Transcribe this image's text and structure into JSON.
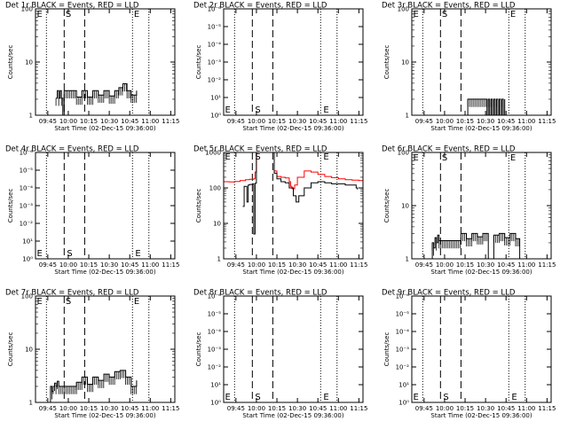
{
  "figure": {
    "background": "#ffffff",
    "event_color": "#000000",
    "lld_color": "#ff0000"
  },
  "chart_data": [
    {
      "type": "line",
      "title": "Det 1r BLACK = Events, RED = LLD",
      "xlabel": "Start Time (02-Dec-15 09:36:00)",
      "ylabel": "Counts/sec",
      "xlim": [
        "09:36",
        "11:18"
      ],
      "ylog": true,
      "ylim": [
        1,
        100
      ],
      "xticks": [
        "09:45",
        "10:00",
        "10:15",
        "10:30",
        "10:45",
        "11:00",
        "11:15"
      ],
      "yticks": [
        "1",
        "10",
        "100"
      ],
      "vlines": {
        "dotted": [
          "09:44",
          "10:47",
          "10:59"
        ],
        "dashed": [
          "09:57",
          "10:12"
        ]
      },
      "markers": [
        {
          "text": "E",
          "x": "09:37",
          "y": 82
        },
        {
          "text": "S",
          "x": "09:58",
          "y": 82
        },
        {
          "text": "E",
          "x": "10:48",
          "y": 82
        }
      ],
      "series": [
        {
          "color": "#000000",
          "gap_above": 1.4,
          "x": [
            "09:51",
            "09:52",
            "09:53",
            "09:54",
            "09:55",
            "09:56",
            "09:57",
            "10:06",
            "10:10",
            "10:14",
            "10:18",
            "10:22",
            "10:26",
            "10:30",
            "10:34",
            "10:37",
            "10:40",
            "10:43",
            "10:46",
            "10:50"
          ],
          "y": [
            2.1,
            2.9,
            2.1,
            2.9,
            2.1,
            1.0,
            2.9,
            2.2,
            2.9,
            2.2,
            2.9,
            2.4,
            2.9,
            2.3,
            2.9,
            3.3,
            3.9,
            2.9,
            2.4,
            2.9
          ]
        }
      ]
    },
    {
      "type": "line",
      "title": "Det 2r BLACK = Events, RED = LLD",
      "xlabel": "Start Time (02-Dec-15 09:36:00)",
      "ylabel": "Counts/sec",
      "xlim": [
        "09:36",
        "11:18"
      ],
      "ylog": true,
      "ylim": [
        1,
        1000000
      ],
      "xticks": [
        "09:45",
        "10:00",
        "10:15",
        "10:30",
        "10:45",
        "11:00",
        "11:15"
      ],
      "yticks": [
        "10⁰",
        "10¹",
        "10⁻²",
        "10⁻³",
        "10⁻⁴",
        "10⁻⁵",
        "10⁻⁶"
      ],
      "vlines": {
        "dotted": [
          "09:44",
          "10:47",
          "10:59"
        ],
        "dashed": [
          "09:57",
          "10:12"
        ]
      },
      "markers": [
        {
          "text": "E",
          "x": "09:37",
          "y": 2.2
        },
        {
          "text": "S",
          "x": "09:59",
          "y": 2.2
        },
        {
          "text": "E",
          "x": "10:49",
          "y": 2.2
        }
      ],
      "series": []
    },
    {
      "type": "line",
      "title": "Det 3r BLACK = Events, RED = LLD",
      "xlabel": "Start Time (02-Dec-15 09:36:00)",
      "ylabel": "Counts/sec",
      "xlim": [
        "09:36",
        "11:18"
      ],
      "ylog": true,
      "ylim": [
        1,
        100
      ],
      "xticks": [
        "09:45",
        "10:00",
        "10:15",
        "10:30",
        "10:45",
        "11:00",
        "11:15"
      ],
      "yticks": [
        "1",
        "10",
        "100"
      ],
      "vlines": {
        "dotted": [
          "09:44",
          "10:47",
          "10:59"
        ],
        "dashed": [
          "09:57",
          "10:12"
        ]
      },
      "markers": [
        {
          "text": "E",
          "x": "09:37",
          "y": 82
        },
        {
          "text": "S",
          "x": "09:58",
          "y": 82
        },
        {
          "text": "E",
          "x": "10:48",
          "y": 82
        }
      ],
      "series": [
        {
          "color": "#000000",
          "gap_above": 1.4,
          "x": [
            "10:16",
            "10:17",
            "10:31",
            "10:32",
            "10:33",
            "10:34",
            "10:35",
            "10:36",
            "10:37",
            "10:38",
            "10:39",
            "10:40",
            "10:41",
            "10:42",
            "10:43",
            "10:44"
          ],
          "y": [
            1.0,
            2.0,
            1.0,
            2.0,
            1.0,
            2.0,
            1.0,
            2.0,
            1.0,
            2.0,
            1.0,
            2.0,
            1.0,
            2.0,
            1.0,
            2.0
          ]
        }
      ]
    },
    {
      "type": "line",
      "title": "Det 4r BLACK = Events, RED = LLD",
      "xlabel": "Start Time (02-Dec-15 09:36:00)",
      "ylabel": "Counts/sec",
      "xlim": [
        "09:36",
        "11:18"
      ],
      "ylog": true,
      "ylim": [
        1,
        1000000
      ],
      "xticks": [
        "09:45",
        "10:00",
        "10:15",
        "10:30",
        "10:45",
        "11:00",
        "11:15"
      ],
      "yticks": [
        "10⁰",
        "10¹",
        "10⁻²",
        "10⁻³",
        "10⁻⁴",
        "10⁻⁵",
        "10⁻⁶"
      ],
      "vlines": {
        "dotted": [
          "09:44",
          "10:47",
          "10:59"
        ],
        "dashed": [
          "09:57",
          "10:12"
        ]
      },
      "markers": [
        {
          "text": "E",
          "x": "09:37",
          "y": 2.2
        },
        {
          "text": "S",
          "x": "09:59",
          "y": 2.2
        },
        {
          "text": "E",
          "x": "10:49",
          "y": 2.2
        }
      ],
      "series": []
    },
    {
      "type": "line",
      "title": "Det 5r BLACK = Events, RED = LLD",
      "xlabel": "Start Time (02-Dec-15 09:36:00)",
      "ylabel": "Counts/sec",
      "xlim": [
        "09:36",
        "11:18"
      ],
      "ylog": true,
      "ylim": [
        1,
        1000
      ],
      "xticks": [
        "09:45",
        "10:00",
        "10:15",
        "10:30",
        "10:45",
        "11:00",
        "11:15"
      ],
      "yticks": [
        "1",
        "10",
        "100",
        "1000"
      ],
      "vlines": {
        "dotted": [
          "09:44",
          "10:47",
          "10:59"
        ],
        "dashed": [
          "09:57",
          "10:12"
        ]
      },
      "markers": [
        {
          "text": "E",
          "x": "09:37",
          "y": 800
        },
        {
          "text": "S",
          "x": "09:59",
          "y": 800
        },
        {
          "text": "E",
          "x": "10:49",
          "y": 800
        }
      ],
      "series": [
        {
          "color": "#ff0000",
          "x": [
            "09:36",
            "09:40",
            "09:44",
            "09:48",
            "09:52",
            "09:55",
            "09:58",
            "09:59",
            "10:00",
            "10:01",
            "10:12",
            "10:13",
            "10:15",
            "10:18",
            "10:21",
            "10:24",
            "10:25",
            "10:26",
            "10:28",
            "10:30",
            "10:35",
            "10:40",
            "10:45",
            "10:50",
            "10:55",
            "11:00",
            "11:05",
            "11:10",
            "11:15",
            "11:18"
          ],
          "y": [
            150,
            148,
            152,
            160,
            170,
            176,
            180,
            280,
            1000,
            1000,
            1000,
            300,
            210,
            200,
            190,
            150,
            110,
            95,
            120,
            200,
            300,
            280,
            240,
            210,
            195,
            180,
            170,
            165,
            160,
            158
          ]
        },
        {
          "color": "#000000",
          "x": [
            "09:50",
            "09:51",
            "09:53",
            "09:54",
            "09:55",
            "09:57",
            "09:58",
            "09:58",
            "09:59",
            "09:59",
            "10:00",
            "10:01",
            "10:12",
            "10:13",
            "10:15",
            "10:18",
            "10:21",
            "10:24",
            "10:27",
            "10:29",
            "10:31",
            "10:35",
            "10:40",
            "10:45",
            "10:50",
            "10:55",
            "11:00",
            "11:05",
            "11:10",
            "11:13",
            "11:14"
          ],
          "y": [
            30,
            110,
            40,
            120,
            125,
            130,
            12,
            5,
            130,
            135,
            1000,
            1000,
            1000,
            260,
            180,
            150,
            140,
            100,
            60,
            40,
            60,
            100,
            140,
            150,
            140,
            130,
            130,
            120,
            120,
            100,
            90
          ]
        }
      ]
    },
    {
      "type": "line",
      "title": "Det 6r BLACK = Events, RED = LLD",
      "xlabel": "Start Time (02-Dec-15 09:36:00)",
      "ylabel": "Counts/sec",
      "xlim": [
        "09:36",
        "11:18"
      ],
      "ylog": true,
      "ylim": [
        1,
        100
      ],
      "xticks": [
        "09:45",
        "10:00",
        "10:15",
        "10:30",
        "10:45",
        "11:00",
        "11:15"
      ],
      "yticks": [
        "1",
        "10",
        "100"
      ],
      "vlines": {
        "dotted": [
          "09:44",
          "10:47",
          "10:59"
        ],
        "dashed": [
          "09:57",
          "10:12"
        ]
      },
      "markers": [
        {
          "text": "E",
          "x": "09:37",
          "y": 82
        },
        {
          "text": "S",
          "x": "09:58",
          "y": 82
        },
        {
          "text": "E",
          "x": "10:48",
          "y": 82
        }
      ],
      "series": [
        {
          "color": "#000000",
          "gap_above": 1.4,
          "x": [
            "09:50",
            "09:51",
            "09:52",
            "09:53",
            "09:54",
            "09:55",
            "09:56",
            "10:12",
            "10:16",
            "10:20",
            "10:24",
            "10:28",
            "10:32",
            "10:36",
            "10:40",
            "10:44",
            "10:48",
            "10:52",
            "10:55"
          ],
          "y": [
            1.0,
            2.0,
            1.6,
            2.5,
            2.0,
            2.8,
            2.2,
            3.0,
            2.4,
            3.0,
            2.6,
            3.0,
            1.0,
            2.8,
            3.0,
            2.5,
            3.0,
            2.4,
            1.0
          ]
        }
      ]
    },
    {
      "type": "line",
      "title": "Det 7r BLACK = Events, RED = LLD",
      "xlabel": "Start Time (02-Dec-15 09:36:00)",
      "ylabel": "Counts/sec",
      "xlim": [
        "09:36",
        "11:18"
      ],
      "ylog": true,
      "ylim": [
        1,
        100
      ],
      "xticks": [
        "09:45",
        "10:00",
        "10:15",
        "10:30",
        "10:45",
        "11:00",
        "11:15"
      ],
      "yticks": [
        "1",
        "10",
        "100"
      ],
      "vlines": {
        "dotted": [
          "09:44",
          "10:47",
          "10:59"
        ],
        "dashed": [
          "09:57",
          "10:12"
        ]
      },
      "markers": [
        {
          "text": "E",
          "x": "09:37",
          "y": 82
        },
        {
          "text": "S",
          "x": "09:58",
          "y": 82
        },
        {
          "text": "E",
          "x": "10:48",
          "y": 82
        }
      ],
      "series": [
        {
          "color": "#000000",
          "gap_above": 1.4,
          "x": [
            "09:46",
            "09:47",
            "09:48",
            "09:49",
            "09:50",
            "09:51",
            "09:52",
            "09:53",
            "10:06",
            "10:10",
            "10:14",
            "10:18",
            "10:22",
            "10:26",
            "10:30",
            "10:34",
            "10:38",
            "10:42",
            "10:46",
            "10:50"
          ],
          "y": [
            1.0,
            2.0,
            1.6,
            2.0,
            2.3,
            2.0,
            2.5,
            2.0,
            2.4,
            3.0,
            2.2,
            3.0,
            2.6,
            3.4,
            3.0,
            3.8,
            4.0,
            3.0,
            2.0,
            2.6
          ]
        }
      ]
    },
    {
      "type": "line",
      "title": "Det 8r BLACK = Events, RED = LLD",
      "xlabel": "Start Time (02-Dec-15 09:36:00)",
      "ylabel": "Counts/sec",
      "xlim": [
        "09:36",
        "11:18"
      ],
      "ylog": true,
      "ylim": [
        1,
        1000000
      ],
      "xticks": [
        "09:45",
        "10:00",
        "10:15",
        "10:30",
        "10:45",
        "11:00",
        "11:15"
      ],
      "yticks": [
        "10⁰",
        "10¹",
        "10⁻²",
        "10⁻³",
        "10⁻⁴",
        "10⁻⁵",
        "10⁻⁶"
      ],
      "vlines": {
        "dotted": [
          "09:44",
          "10:47",
          "10:59"
        ],
        "dashed": [
          "09:57",
          "10:12"
        ]
      },
      "markers": [
        {
          "text": "E",
          "x": "09:37",
          "y": 2.2
        },
        {
          "text": "S",
          "x": "09:59",
          "y": 2.2
        },
        {
          "text": "E",
          "x": "10:49",
          "y": 2.2
        }
      ],
      "series": []
    },
    {
      "type": "line",
      "title": "Det 9r BLACK = Events, RED = LLD",
      "xlabel": "Start Time (02-Dec-15 09:36:00)",
      "ylabel": "Counts/sec",
      "xlim": [
        "09:36",
        "11:18"
      ],
      "ylog": true,
      "ylim": [
        1,
        1000000
      ],
      "xticks": [
        "09:45",
        "10:00",
        "10:15",
        "10:30",
        "10:45",
        "11:00",
        "11:15"
      ],
      "yticks": [
        "10⁰",
        "10¹",
        "10⁻²",
        "10⁻³",
        "10⁻⁴",
        "10⁻⁵",
        "10⁻⁶"
      ],
      "vlines": {
        "dotted": [
          "09:44",
          "10:47",
          "10:59"
        ],
        "dashed": [
          "09:57",
          "10:12"
        ]
      },
      "markers": [
        {
          "text": "E",
          "x": "09:37",
          "y": 2.2
        },
        {
          "text": "S",
          "x": "09:59",
          "y": 2.2
        },
        {
          "text": "E",
          "x": "10:49",
          "y": 2.2
        }
      ],
      "series": []
    }
  ]
}
